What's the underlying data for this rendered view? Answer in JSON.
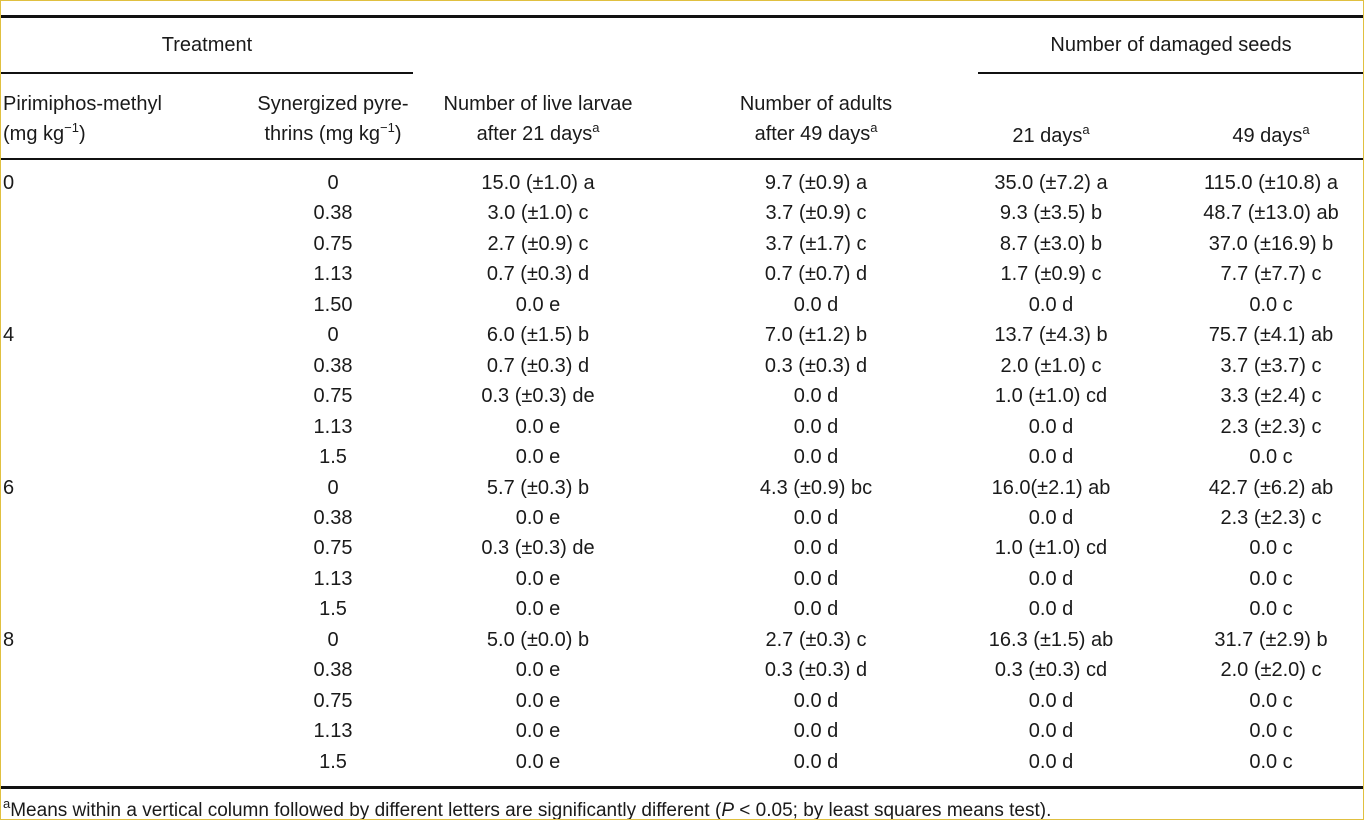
{
  "header": {
    "treatment": "Treatment",
    "damaged_seeds": "Number of damaged seeds",
    "columns": [
      {
        "line1": "Pirimiphos-methyl",
        "line2": "(mg kg",
        "sup": "−1",
        "after": ")"
      },
      {
        "line1": "Synergized pyre-",
        "line2": "thrins (mg kg",
        "sup": "−1",
        "after": ")"
      },
      {
        "line1": "Number of live larvae",
        "line2": "after 21 days",
        "sup": "a"
      },
      {
        "line1": "Number of adults",
        "line2": "after 49 days",
        "sup": "a"
      },
      {
        "line2": "21 days",
        "sup": "a"
      },
      {
        "line2": "49 days",
        "sup": "a"
      }
    ]
  },
  "table": {
    "groups": [
      {
        "dose": "0",
        "rows": [
          [
            "0",
            "15.0 (±1.0) a",
            "9.7 (±0.9) a",
            "35.0 (±7.2) a",
            "115.0 (±10.8) a"
          ],
          [
            "0.38",
            "3.0 (±1.0) c",
            "3.7 (±0.9) c",
            "9.3 (±3.5) b",
            "48.7 (±13.0) ab"
          ],
          [
            "0.75",
            "2.7 (±0.9) c",
            "3.7 (±1.7) c",
            "8.7 (±3.0) b",
            "37.0 (±16.9) b"
          ],
          [
            "1.13",
            "0.7 (±0.3) d",
            "0.7 (±0.7) d",
            "1.7 (±0.9) c",
            "7.7 (±7.7) c"
          ],
          [
            "1.50",
            "0.0 e",
            "0.0 d",
            "0.0 d",
            "0.0 c"
          ]
        ]
      },
      {
        "dose": "4",
        "rows": [
          [
            "0",
            "6.0 (±1.5) b",
            "7.0 (±1.2) b",
            "13.7 (±4.3) b",
            "75.7 (±4.1) ab"
          ],
          [
            "0.38",
            "0.7 (±0.3) d",
            "0.3 (±0.3) d",
            "2.0 (±1.0) c",
            "3.7 (±3.7) c"
          ],
          [
            "0.75",
            "0.3 (±0.3) de",
            "0.0 d",
            "1.0 (±1.0) cd",
            "3.3 (±2.4) c"
          ],
          [
            "1.13",
            "0.0 e",
            "0.0 d",
            "0.0 d",
            "2.3 (±2.3) c"
          ],
          [
            "1.5",
            "0.0 e",
            "0.0 d",
            "0.0 d",
            "0.0 c"
          ]
        ]
      },
      {
        "dose": "6",
        "rows": [
          [
            "0",
            "5.7 (±0.3) b",
            "4.3 (±0.9) bc",
            "16.0(±2.1) ab",
            "42.7 (±6.2) ab"
          ],
          [
            "0.38",
            "0.0 e",
            "0.0 d",
            "0.0 d",
            "2.3 (±2.3) c"
          ],
          [
            "0.75",
            "0.3 (±0.3) de",
            "0.0 d",
            "1.0 (±1.0) cd",
            "0.0 c"
          ],
          [
            "1.13",
            "0.0 e",
            "0.0 d",
            "0.0 d",
            "0.0 c"
          ],
          [
            "1.5",
            "0.0 e",
            "0.0 d",
            "0.0 d",
            "0.0 c"
          ]
        ]
      },
      {
        "dose": "8",
        "rows": [
          [
            "0",
            "5.0 (±0.0) b",
            "2.7 (±0.3) c",
            "16.3 (±1.5) ab",
            "31.7 (±2.9) b"
          ],
          [
            "0.38",
            "0.0 e",
            "0.3 (±0.3) d",
            "0.3 (±0.3) cd",
            "2.0 (±2.0) c"
          ],
          [
            "0.75",
            "0.0 e",
            "0.0 d",
            "0.0 d",
            "0.0 c"
          ],
          [
            "1.13",
            "0.0 e",
            "0.0 d",
            "0.0 d",
            "0.0 c"
          ],
          [
            "1.5",
            "0.0 e",
            "0.0 d",
            "0.0 d",
            "0.0 c"
          ]
        ]
      }
    ]
  },
  "footnote": {
    "mark": "a",
    "text": "Means within a vertical column followed by different letters are significantly different (",
    "italic": "P",
    "after": " < 0.05; by least squares means test)."
  }
}
